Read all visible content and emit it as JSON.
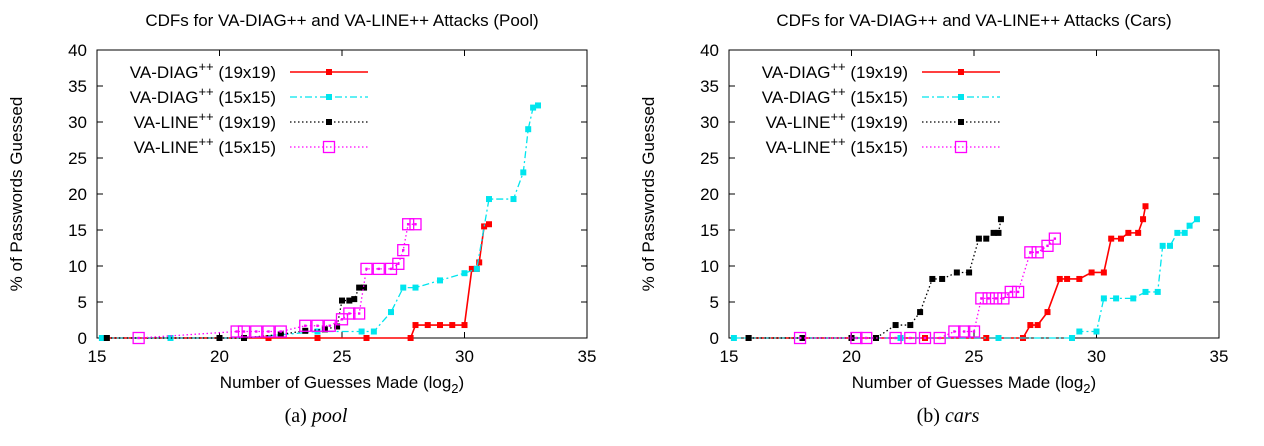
{
  "figure": {
    "captions": [
      {
        "prefix": "(a)",
        "name": "pool"
      },
      {
        "prefix": "(b)",
        "name": "cars"
      }
    ]
  },
  "chart_data": [
    {
      "type": "line",
      "title": "CDFs for VA-DIAG++ and VA-LINE++  Attacks (Pool)",
      "xlabel": "Number of Guesses Made (log2)",
      "ylabel": "% of Passwords Guessed",
      "xlim": [
        15,
        35
      ],
      "ylim": [
        0,
        40
      ],
      "xticks": [
        15,
        20,
        25,
        30,
        35
      ],
      "yticks": [
        0,
        5,
        10,
        15,
        20,
        25,
        30,
        35,
        40
      ],
      "grid": false,
      "legend_position": "top-left",
      "series": [
        {
          "name": "VA-DIAG++ (19x19)",
          "color": "#ff0000",
          "style": "solid",
          "marker": "filled-square",
          "x": [
            15.4,
            20.0,
            22.0,
            24.0,
            26.0,
            27.8,
            28.0,
            28.5,
            29.0,
            29.5,
            30.0,
            30.3,
            30.5,
            30.6,
            30.8,
            31.0
          ],
          "y": [
            0,
            0,
            0,
            0,
            0,
            0,
            1.8,
            1.8,
            1.8,
            1.8,
            1.8,
            9.6,
            9.6,
            10.5,
            15.5,
            15.8
          ]
        },
        {
          "name": "VA-DIAG++ (15x15)",
          "color": "#00e5ee",
          "style": "dash-dot",
          "marker": "filled-square",
          "x": [
            15.2,
            18.0,
            21.0,
            24.0,
            25.8,
            26.3,
            27.0,
            27.5,
            28.0,
            29.0,
            30.0,
            30.5,
            31.0,
            32.0,
            32.4,
            32.6,
            32.8,
            33.0
          ],
          "y": [
            0,
            0,
            0,
            0.9,
            0.9,
            0.9,
            3.6,
            7.0,
            7.0,
            8.0,
            9.0,
            9.6,
            19.3,
            19.3,
            23.0,
            29.0,
            32.0,
            32.3
          ]
        },
        {
          "name": "VA-LINE++ (19x19)",
          "color": "#000000",
          "style": "dotted",
          "marker": "filled-square",
          "x": [
            15.4,
            20.0,
            21.0,
            22.5,
            23.5,
            24.3,
            24.8,
            25.0,
            25.3,
            25.5,
            25.7,
            25.9
          ],
          "y": [
            0,
            0,
            0,
            0.5,
            1.0,
            1.2,
            1.6,
            5.2,
            5.2,
            5.4,
            7.0,
            7.0
          ]
        },
        {
          "name": "VA-LINE++ (15x15)",
          "color": "#ff00ff",
          "style": "dotted",
          "marker": "open-square",
          "x": [
            16.7,
            20.7,
            21.0,
            21.5,
            22.0,
            22.5,
            23.5,
            24.0,
            24.5,
            25.0,
            25.3,
            25.7,
            26.0,
            26.5,
            27.0,
            27.3,
            27.5,
            27.7,
            28.0
          ],
          "y": [
            0,
            0.9,
            0.9,
            0.9,
            0.9,
            0.9,
            1.7,
            1.7,
            1.7,
            2.6,
            3.4,
            3.4,
            9.6,
            9.6,
            9.6,
            10.3,
            12.2,
            15.8,
            15.8
          ]
        }
      ]
    },
    {
      "type": "line",
      "title": "CDFs for VA-DIAG++ and VA-LINE++  Attacks (Cars)",
      "xlabel": "Number of Guesses Made (log2)",
      "ylabel": "% of Passwords Guessed",
      "xlim": [
        15,
        35
      ],
      "ylim": [
        0,
        40
      ],
      "xticks": [
        15,
        20,
        25,
        30,
        35
      ],
      "yticks": [
        0,
        5,
        10,
        15,
        20,
        25,
        30,
        35,
        40
      ],
      "grid": false,
      "legend_position": "top-left",
      "series": [
        {
          "name": "VA-DIAG++ (19x19)",
          "color": "#ff0000",
          "style": "solid",
          "marker": "filled-square",
          "x": [
            15.8,
            20.0,
            23.0,
            25.5,
            27.0,
            27.3,
            27.6,
            28.0,
            28.5,
            28.8,
            29.3,
            29.8,
            30.3,
            30.6,
            31.0,
            31.3,
            31.7,
            31.9,
            32.0
          ],
          "y": [
            0,
            0,
            0,
            0,
            0,
            1.8,
            1.8,
            3.6,
            8.2,
            8.2,
            8.2,
            9.1,
            9.1,
            13.8,
            13.8,
            14.6,
            14.6,
            16.5,
            18.3
          ]
        },
        {
          "name": "VA-DIAG++ (15x15)",
          "color": "#00e5ee",
          "style": "dash-dot",
          "marker": "filled-square",
          "x": [
            15.2,
            18.0,
            22.0,
            26.0,
            29.0,
            29.3,
            30.0,
            30.3,
            30.8,
            31.5,
            32.0,
            32.5,
            32.7,
            33.0,
            33.3,
            33.6,
            33.8,
            34.1
          ],
          "y": [
            0,
            0,
            0,
            0,
            0,
            0.9,
            0.9,
            5.5,
            5.5,
            5.5,
            6.4,
            6.4,
            12.8,
            12.8,
            14.6,
            14.6,
            15.6,
            16.5
          ]
        },
        {
          "name": "VA-LINE++ (19x19)",
          "color": "#000000",
          "style": "dotted",
          "marker": "filled-square",
          "x": [
            15.8,
            18.0,
            20.0,
            21.0,
            21.8,
            22.4,
            22.8,
            23.3,
            23.7,
            24.3,
            24.8,
            25.2,
            25.5,
            25.8,
            26.0,
            26.1
          ],
          "y": [
            0,
            0,
            0,
            0,
            1.8,
            1.8,
            3.6,
            8.2,
            8.2,
            9.1,
            9.1,
            13.8,
            13.8,
            14.6,
            14.6,
            16.5
          ]
        },
        {
          "name": "VA-LINE++ (15x15)",
          "color": "#ff00ff",
          "style": "dotted",
          "marker": "open-square",
          "x": [
            17.9,
            20.2,
            20.6,
            21.8,
            22.4,
            23.0,
            23.6,
            24.2,
            24.6,
            25.0,
            25.3,
            25.6,
            25.9,
            26.2,
            26.5,
            26.8,
            27.3,
            27.6,
            28.0,
            28.3
          ],
          "y": [
            0,
            0,
            0,
            0,
            0,
            0,
            0,
            0.9,
            0.9,
            0.9,
            5.5,
            5.5,
            5.5,
            5.5,
            6.4,
            6.4,
            11.9,
            11.9,
            12.8,
            13.8
          ]
        }
      ]
    }
  ]
}
